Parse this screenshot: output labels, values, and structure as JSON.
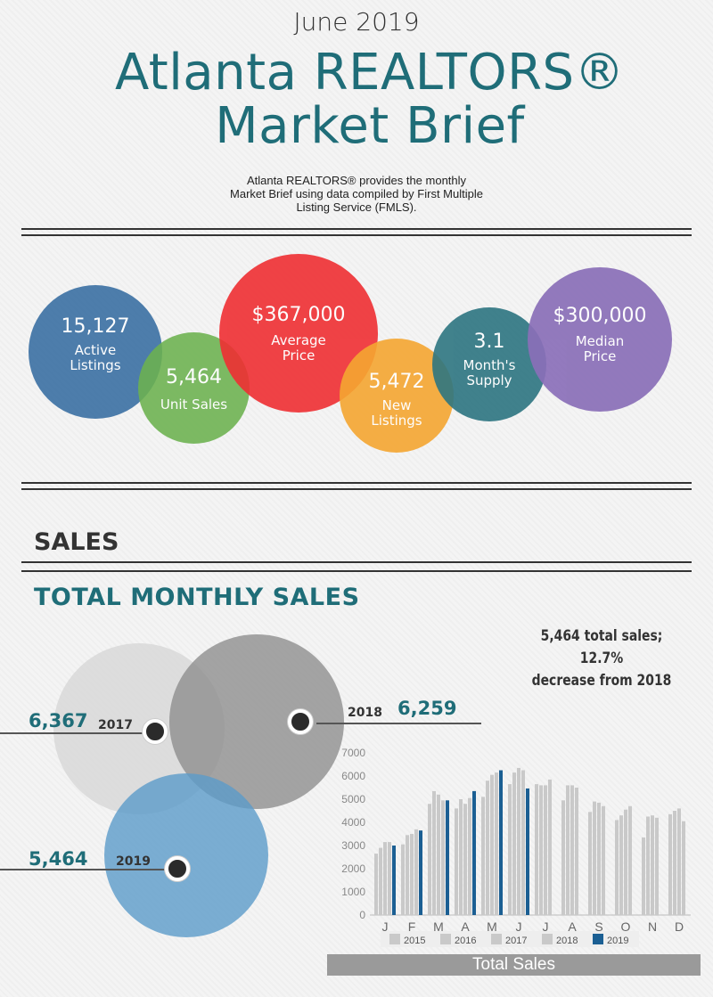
{
  "header": {
    "date": "June 2019",
    "title_line1": "Atlanta REALTORS®",
    "title_line2": "Market Brief",
    "subtitle_line1": "Atlanta REALTORS® provides the monthly",
    "subtitle_line2": "Market Brief using data compiled by First Multiple",
    "subtitle_line3": "Listing Service (FMLS)."
  },
  "stats": {
    "active": {
      "value": "15,127",
      "label1": "Active",
      "label2": "Listings",
      "color": "#3f73a5"
    },
    "unit_sales": {
      "value": "5,464",
      "label1": "Unit Sales",
      "color": "#6cb24f"
    },
    "avg_price": {
      "value": "$367,000",
      "label1": "Average",
      "label2": "Price",
      "color": "#ef2f33"
    },
    "new_listings": {
      "value": "5,472",
      "label1": "New",
      "label2": "Listings",
      "color": "#f5a631"
    },
    "supply": {
      "value": "3.1",
      "label1": "Month's",
      "label2": "Supply",
      "color": "#2d7581"
    },
    "median": {
      "value": "$300,000",
      "label1": "Median",
      "label2": "Price",
      "color": "#8a6fb8"
    }
  },
  "sales": {
    "section_title": "SALES",
    "subsection_title": "TOTAL MONTHLY SALES",
    "note_line1": "5,464 total sales; 12.7%",
    "note_line2": "decrease from 2018",
    "venn": {
      "y2017": {
        "year": "2017",
        "value": "6,367",
        "color": "#d8d8d8"
      },
      "y2018": {
        "year": "2018",
        "value": "6,259",
        "color": "#8e8e8e"
      },
      "y2019": {
        "year": "2019",
        "value": "5,464",
        "color": "#5b9bc9"
      }
    },
    "footer": "Total Sales"
  },
  "chart_data": {
    "type": "bar",
    "title": "Total Sales",
    "categories": [
      "J",
      "F",
      "M",
      "A",
      "M",
      "J",
      "J",
      "A",
      "S",
      "O",
      "N",
      "D"
    ],
    "ylim": [
      0,
      7000
    ],
    "yticks": [
      0,
      1000,
      2000,
      3000,
      4000,
      5000,
      6000,
      7000
    ],
    "legend": [
      "2015",
      "2016",
      "2017",
      "2018",
      "2019"
    ],
    "series": [
      {
        "name": "2015",
        "color": "#c9c9c9",
        "values": [
          2650,
          3050,
          4800,
          4600,
          5100,
          5650,
          5650,
          4950,
          4450,
          4100,
          3350,
          4350
        ]
      },
      {
        "name": "2016",
        "color": "#c9c9c9",
        "values": [
          2900,
          3450,
          5350,
          5000,
          5800,
          6150,
          5600,
          5600,
          4900,
          4300,
          4250,
          4500
        ]
      },
      {
        "name": "2017",
        "color": "#c9c9c9",
        "values": [
          3150,
          3500,
          5200,
          4800,
          6050,
          6350,
          5600,
          5600,
          4850,
          4550,
          4300,
          4600
        ]
      },
      {
        "name": "2018",
        "color": "#c9c9c9",
        "values": [
          3150,
          3700,
          4950,
          5050,
          6150,
          6250,
          5850,
          5500,
          4700,
          4700,
          4200,
          4050
        ]
      },
      {
        "name": "2019",
        "color": "#1b5f93",
        "values": [
          3000,
          3650,
          4950,
          5350,
          6250,
          5464,
          null,
          null,
          null,
          null,
          null,
          null
        ]
      }
    ]
  }
}
